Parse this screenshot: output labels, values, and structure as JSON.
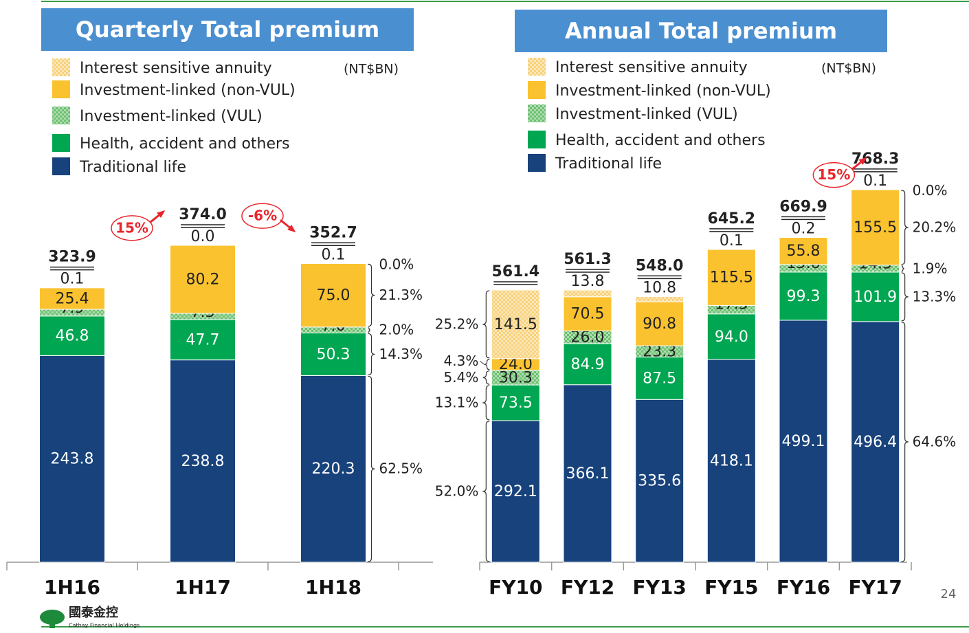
{
  "chart_data": [
    {
      "type": "bar",
      "stacked": true,
      "title": "Quarterly Total premium",
      "unit_label": "(NT$BN)",
      "categories": [
        "1H16",
        "1H17",
        "1H18"
      ],
      "series": [
        {
          "name": "Traditional life",
          "color": "#17427c",
          "pattern": false,
          "label_color": "#ffffff",
          "values": [
            243.8,
            238.8,
            220.3
          ],
          "value_labels": [
            "243.8",
            "238.8",
            "220.3"
          ]
        },
        {
          "name": "Health, accident and others",
          "color": "#00a651",
          "pattern": false,
          "label_color": "#ffffff",
          "values": [
            46.8,
            47.7,
            50.3
          ],
          "value_labels": [
            "46.8",
            "47.7",
            "50.3"
          ]
        },
        {
          "name": "Investment-linked (VUL)",
          "color": "#6cc070",
          "pattern": true,
          "label_color": "#222222",
          "values": [
            7.9,
            7.3,
            7.0
          ],
          "value_labels": [
            "7.9",
            "7.3",
            "7.0"
          ]
        },
        {
          "name": "Investment-linked (non-VUL)",
          "color": "#fbc22f",
          "pattern": false,
          "label_color": "#222222",
          "values": [
            25.4,
            80.2,
            75.0
          ],
          "value_labels": [
            "25.4",
            "80.2",
            "75.0"
          ]
        },
        {
          "name": "Interest sensitive annuity",
          "color": "#f8d27c",
          "pattern": true,
          "label_color": "#222222",
          "values": [
            0.1,
            0.0,
            0.1
          ],
          "value_labels": [
            "0.1",
            "0.0",
            "0.1"
          ]
        }
      ],
      "totals": {
        "values": [
          323.9,
          374.0,
          352.7
        ],
        "value_labels": [
          "323.9",
          "374.0",
          "352.7"
        ]
      },
      "growth": {
        "values": [
          null,
          15,
          -6
        ],
        "value_labels": [
          null,
          "15%",
          "-6%"
        ]
      },
      "shares": [
        {
          "category": "1H18",
          "side": "right",
          "values": [
            62.5,
            14.3,
            2.0,
            21.3,
            0.0
          ],
          "value_labels": [
            "62.5%",
            "14.3%",
            "2.0%",
            "21.3%",
            "0.0%"
          ]
        }
      ]
    },
    {
      "type": "bar",
      "stacked": true,
      "title": "Annual Total premium",
      "unit_label": "(NT$BN)",
      "categories": [
        "FY10",
        "FY12",
        "FY13",
        "FY15",
        "FY16",
        "FY17"
      ],
      "series": [
        {
          "name": "Traditional life",
          "color": "#17427c",
          "pattern": false,
          "label_color": "#ffffff",
          "values": [
            292.1,
            366.1,
            335.6,
            418.1,
            499.1,
            496.4
          ],
          "value_labels": [
            "292.1",
            "366.1",
            "335.6",
            "418.1",
            "499.1",
            "496.4"
          ]
        },
        {
          "name": "Health, accident and others",
          "color": "#00a651",
          "pattern": false,
          "label_color": "#ffffff",
          "values": [
            73.5,
            84.9,
            87.5,
            94.0,
            99.3,
            101.9
          ],
          "value_labels": [
            "73.5",
            "84.9",
            "87.5",
            "94.0",
            "99.3",
            "101.9"
          ]
        },
        {
          "name": "Investment-linked (VUL)",
          "color": "#6cc070",
          "pattern": true,
          "label_color": "#222222",
          "values": [
            30.3,
            26.0,
            23.3,
            17.5,
            15.6,
            14.5
          ],
          "value_labels": [
            "30.3",
            "26.0",
            "23.3",
            "17.5",
            "15.6",
            "14.5"
          ]
        },
        {
          "name": "Investment-linked (non-VUL)",
          "color": "#fbc22f",
          "pattern": false,
          "label_color": "#222222",
          "values": [
            24.0,
            70.5,
            90.8,
            115.5,
            55.8,
            155.5
          ],
          "value_labels": [
            "24.0",
            "70.5",
            "90.8",
            "115.5",
            "55.8",
            "155.5"
          ]
        },
        {
          "name": "Interest sensitive annuity",
          "color": "#f8d27c",
          "pattern": true,
          "label_color": "#222222",
          "values": [
            141.5,
            13.8,
            10.8,
            0.1,
            0.2,
            0.1
          ],
          "value_labels": [
            "141.5",
            "13.8",
            "10.8",
            "0.1",
            "0.2",
            "0.1"
          ]
        }
      ],
      "totals": {
        "values": [
          561.4,
          561.3,
          548.0,
          645.2,
          669.9,
          768.3
        ],
        "value_labels": [
          "561.4",
          "561.3",
          "548.0",
          "645.2",
          "669.9",
          "768.3"
        ]
      },
      "growth": {
        "values": [
          null,
          null,
          null,
          null,
          null,
          15
        ],
        "value_labels": [
          null,
          null,
          null,
          null,
          null,
          "15%"
        ]
      },
      "shares": [
        {
          "category": "FY10",
          "side": "left",
          "values": [
            52.0,
            13.1,
            5.4,
            4.3,
            25.2
          ],
          "value_labels": [
            "52.0%",
            "13.1%",
            "5.4%",
            "4.3%",
            "25.2%"
          ]
        },
        {
          "category": "FY17",
          "side": "right",
          "values": [
            64.6,
            13.3,
            1.9,
            20.2,
            0.0
          ],
          "value_labels": [
            "64.6%",
            "13.3%",
            "1.9%",
            "20.2%",
            "0.0%"
          ]
        }
      ]
    }
  ],
  "footer": {
    "logo_text": "國泰金控",
    "logo_subtext": "Cathay Financial Holdings",
    "page_number": "24"
  }
}
